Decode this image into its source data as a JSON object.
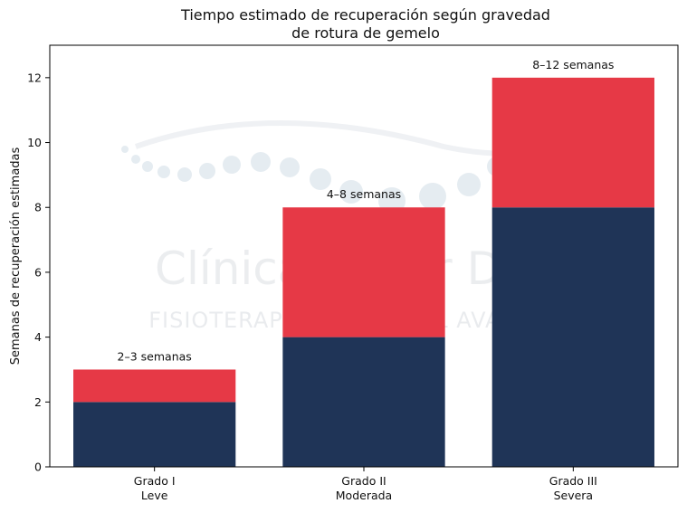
{
  "chart_data": {
    "type": "bar",
    "stacked": true,
    "title_lines": [
      "Tiempo estimado de recuperación según gravedad",
      "de rotura de gemelo"
    ],
    "ylabel": "Semanas de recuperación estimadas",
    "xlabel": "",
    "categories": [
      {
        "line1": "Grado I",
        "line2": "Leve"
      },
      {
        "line1": "Grado II",
        "line2": "Moderada"
      },
      {
        "line1": "Grado III",
        "line2": "Severa"
      }
    ],
    "series": [
      {
        "values": [
          2,
          4,
          8
        ],
        "color": "#1f3457"
      },
      {
        "values": [
          1,
          4,
          4
        ],
        "color": "#e63946"
      }
    ],
    "annotations": [
      "2–3 semanas",
      "4–8 semanas",
      "8–12 semanas"
    ],
    "ylim": [
      0,
      13
    ],
    "yticks": [
      0,
      2,
      4,
      6,
      8,
      10,
      12
    ],
    "grid": false,
    "legend": "none"
  },
  "watermark": {
    "name": "Clínica Víctor Díez",
    "tagline": "FISIOTERAPIA FUNCIONAL AVANZADA"
  }
}
